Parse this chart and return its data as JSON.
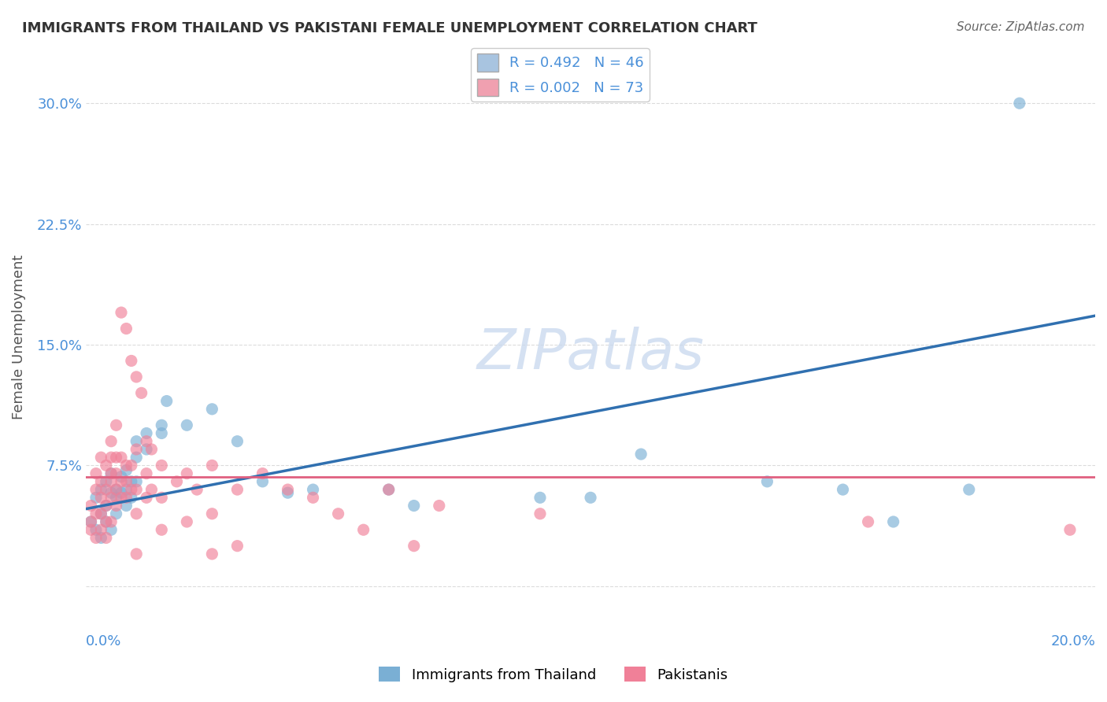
{
  "title": "IMMIGRANTS FROM THAILAND VS PAKISTANI FEMALE UNEMPLOYMENT CORRELATION CHART",
  "source": "Source: ZipAtlas.com",
  "ylabel": "Female Unemployment",
  "y_ticks": [
    0.0,
    0.075,
    0.15,
    0.225,
    0.3
  ],
  "y_tick_labels": [
    "",
    "7.5%",
    "15.0%",
    "22.5%",
    "30.0%"
  ],
  "x_lim": [
    0.0,
    0.2
  ],
  "y_lim": [
    -0.025,
    0.335
  ],
  "legend_entries": [
    {
      "label": "R = 0.492   N = 46",
      "color": "#a8c4e0"
    },
    {
      "label": "R = 0.002   N = 73",
      "color": "#f0a0b0"
    }
  ],
  "watermark": "ZIPatlas",
  "blue_color": "#7aafd4",
  "pink_color": "#f08098",
  "blue_line_color": "#3070b0",
  "pink_line_color": "#e06080",
  "blue_scatter": [
    [
      0.001,
      0.04
    ],
    [
      0.002,
      0.055
    ],
    [
      0.002,
      0.035
    ],
    [
      0.003,
      0.045
    ],
    [
      0.003,
      0.06
    ],
    [
      0.003,
      0.03
    ],
    [
      0.004,
      0.05
    ],
    [
      0.004,
      0.04
    ],
    [
      0.004,
      0.065
    ],
    [
      0.005,
      0.035
    ],
    [
      0.005,
      0.07
    ],
    [
      0.005,
      0.058
    ],
    [
      0.006,
      0.06
    ],
    [
      0.006,
      0.055
    ],
    [
      0.006,
      0.045
    ],
    [
      0.007,
      0.068
    ],
    [
      0.007,
      0.058
    ],
    [
      0.008,
      0.06
    ],
    [
      0.008,
      0.072
    ],
    [
      0.008,
      0.05
    ],
    [
      0.009,
      0.055
    ],
    [
      0.009,
      0.065
    ],
    [
      0.01,
      0.08
    ],
    [
      0.01,
      0.065
    ],
    [
      0.01,
      0.09
    ],
    [
      0.012,
      0.095
    ],
    [
      0.012,
      0.085
    ],
    [
      0.015,
      0.1
    ],
    [
      0.015,
      0.095
    ],
    [
      0.016,
      0.115
    ],
    [
      0.02,
      0.1
    ],
    [
      0.025,
      0.11
    ],
    [
      0.03,
      0.09
    ],
    [
      0.035,
      0.065
    ],
    [
      0.04,
      0.058
    ],
    [
      0.045,
      0.06
    ],
    [
      0.06,
      0.06
    ],
    [
      0.065,
      0.05
    ],
    [
      0.09,
      0.055
    ],
    [
      0.1,
      0.055
    ],
    [
      0.11,
      0.082
    ],
    [
      0.135,
      0.065
    ],
    [
      0.15,
      0.06
    ],
    [
      0.16,
      0.04
    ],
    [
      0.175,
      0.06
    ],
    [
      0.185,
      0.3
    ]
  ],
  "pink_scatter": [
    [
      0.001,
      0.05
    ],
    [
      0.001,
      0.04
    ],
    [
      0.001,
      0.035
    ],
    [
      0.002,
      0.06
    ],
    [
      0.002,
      0.045
    ],
    [
      0.002,
      0.07
    ],
    [
      0.002,
      0.03
    ],
    [
      0.003,
      0.08
    ],
    [
      0.003,
      0.055
    ],
    [
      0.003,
      0.065
    ],
    [
      0.003,
      0.045
    ],
    [
      0.003,
      0.035
    ],
    [
      0.004,
      0.075
    ],
    [
      0.004,
      0.06
    ],
    [
      0.004,
      0.05
    ],
    [
      0.004,
      0.04
    ],
    [
      0.004,
      0.03
    ],
    [
      0.005,
      0.09
    ],
    [
      0.005,
      0.07
    ],
    [
      0.005,
      0.08
    ],
    [
      0.005,
      0.065
    ],
    [
      0.005,
      0.055
    ],
    [
      0.005,
      0.04
    ],
    [
      0.006,
      0.1
    ],
    [
      0.006,
      0.08
    ],
    [
      0.006,
      0.07
    ],
    [
      0.006,
      0.06
    ],
    [
      0.006,
      0.05
    ],
    [
      0.007,
      0.17
    ],
    [
      0.007,
      0.08
    ],
    [
      0.007,
      0.065
    ],
    [
      0.007,
      0.055
    ],
    [
      0.008,
      0.16
    ],
    [
      0.008,
      0.075
    ],
    [
      0.008,
      0.065
    ],
    [
      0.008,
      0.055
    ],
    [
      0.009,
      0.14
    ],
    [
      0.009,
      0.075
    ],
    [
      0.009,
      0.06
    ],
    [
      0.01,
      0.13
    ],
    [
      0.01,
      0.085
    ],
    [
      0.01,
      0.06
    ],
    [
      0.01,
      0.045
    ],
    [
      0.01,
      0.02
    ],
    [
      0.011,
      0.12
    ],
    [
      0.012,
      0.09
    ],
    [
      0.012,
      0.07
    ],
    [
      0.012,
      0.055
    ],
    [
      0.013,
      0.085
    ],
    [
      0.013,
      0.06
    ],
    [
      0.015,
      0.075
    ],
    [
      0.015,
      0.055
    ],
    [
      0.015,
      0.035
    ],
    [
      0.018,
      0.065
    ],
    [
      0.02,
      0.07
    ],
    [
      0.02,
      0.04
    ],
    [
      0.022,
      0.06
    ],
    [
      0.025,
      0.045
    ],
    [
      0.025,
      0.075
    ],
    [
      0.025,
      0.02
    ],
    [
      0.03,
      0.06
    ],
    [
      0.03,
      0.025
    ],
    [
      0.035,
      0.07
    ],
    [
      0.04,
      0.06
    ],
    [
      0.045,
      0.055
    ],
    [
      0.05,
      0.045
    ],
    [
      0.055,
      0.035
    ],
    [
      0.06,
      0.06
    ],
    [
      0.065,
      0.025
    ],
    [
      0.07,
      0.05
    ],
    [
      0.09,
      0.045
    ],
    [
      0.155,
      0.04
    ],
    [
      0.195,
      0.035
    ]
  ],
  "blue_line_x": [
    0.0,
    0.2
  ],
  "blue_line_y_start": 0.048,
  "blue_line_y_end": 0.168,
  "pink_line_y": 0.068,
  "grid_color": "#cccccc",
  "background_color": "#ffffff"
}
